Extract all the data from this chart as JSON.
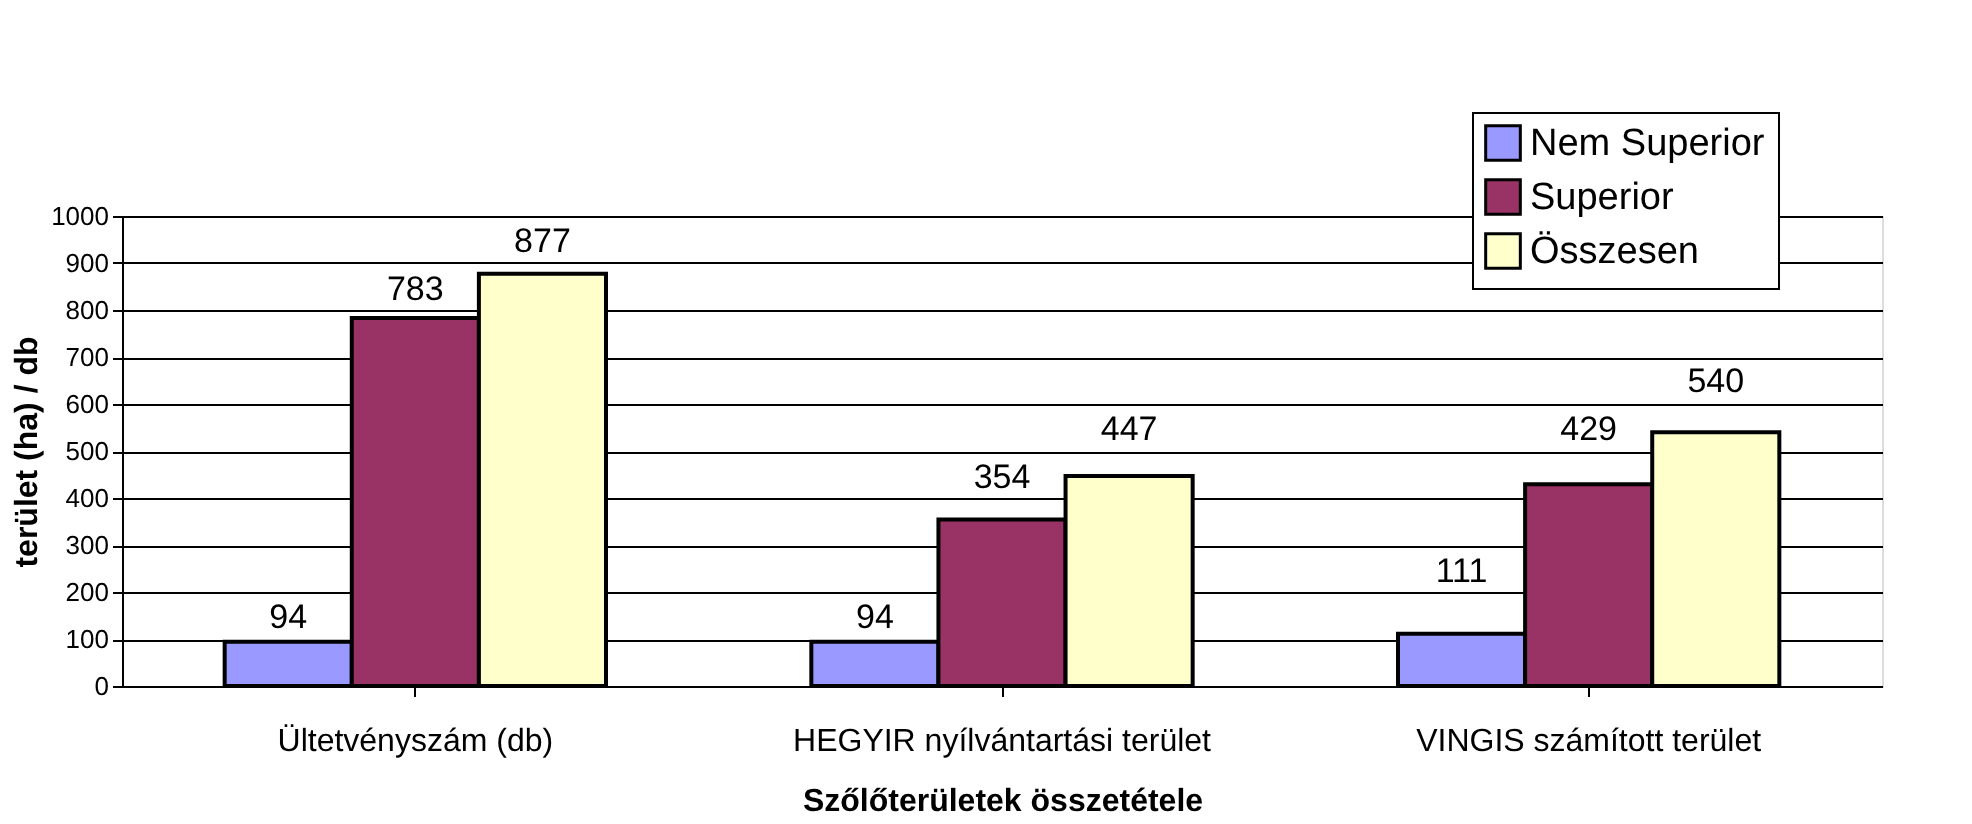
{
  "chart_data": {
    "type": "bar",
    "xlabel": "Szőlőterületek összetétele",
    "ylabel": "terület (ha) / db",
    "categories": [
      "Ültetvényszám (db)",
      "HEGYIR nyílvántartási terület",
      "VINGIS számított terület"
    ],
    "series": [
      {
        "name": "Nem Superior",
        "color": "#9999ff",
        "values": [
          94,
          94,
          111
        ]
      },
      {
        "name": "Superior",
        "color": "#993366",
        "values": [
          783,
          354,
          429
        ]
      },
      {
        "name": "Összesen",
        "color": "#ffffcc",
        "values": [
          877,
          447,
          540
        ]
      }
    ],
    "ylim": [
      0,
      1000
    ],
    "yticks": [
      0,
      100,
      200,
      300,
      400,
      500,
      600,
      700,
      800,
      900,
      1000
    ],
    "grid": "y",
    "legend": "top right",
    "data_labels": true
  }
}
